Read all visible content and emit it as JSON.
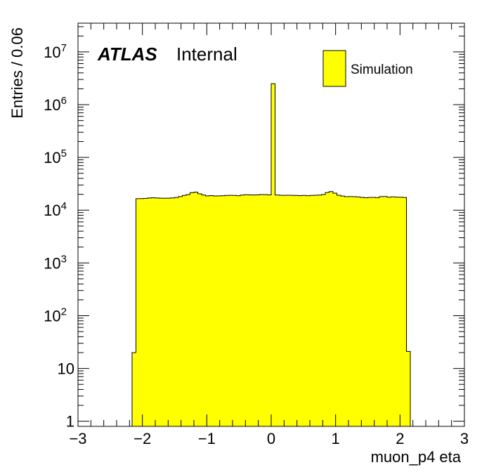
{
  "chart_data": {
    "type": "histogram",
    "xlabel": "muon_p4 eta",
    "ylabel": "Entries / 0.06",
    "xlim": [
      -3,
      3
    ],
    "ylim": [
      0.8,
      35000000
    ],
    "y_scale": "log",
    "bin_width": 0.06,
    "fill_color": "#ffff00",
    "line_color": "#000000",
    "x_ticks": [
      -3,
      -2,
      -1,
      0,
      1,
      2,
      3
    ],
    "x_tick_labels": [
      "−3",
      "−2",
      "−1",
      "0",
      "1",
      "2",
      "3"
    ],
    "y_ticks": [
      1,
      10,
      100,
      1000,
      10000,
      100000,
      1000000,
      10000000
    ],
    "y_tick_labels": [
      {
        "base": "1",
        "exp": ""
      },
      {
        "base": "10",
        "exp": ""
      },
      {
        "base": "10",
        "exp": "2"
      },
      {
        "base": "10",
        "exp": "3"
      },
      {
        "base": "10",
        "exp": "4"
      },
      {
        "base": "10",
        "exp": "5"
      },
      {
        "base": "10",
        "exp": "6"
      },
      {
        "base": "10",
        "exp": "7"
      }
    ],
    "bin_edges": [
      -2.16,
      -2.1,
      -2.04,
      -1.98,
      -1.92,
      -1.86,
      -1.8,
      -1.74,
      -1.68,
      -1.62,
      -1.56,
      -1.5,
      -1.44,
      -1.38,
      -1.32,
      -1.26,
      -1.2,
      -1.14,
      -1.08,
      -1.02,
      -0.96,
      -0.9,
      -0.84,
      -0.78,
      -0.72,
      -0.66,
      -0.6,
      -0.54,
      -0.48,
      -0.42,
      -0.36,
      -0.3,
      -0.24,
      -0.18,
      -0.12,
      -0.06,
      0,
      0.06,
      0.12,
      0.18,
      0.24,
      0.3,
      0.36,
      0.42,
      0.48,
      0.54,
      0.6,
      0.66,
      0.72,
      0.78,
      0.84,
      0.9,
      0.96,
      1.02,
      1.08,
      1.14,
      1.2,
      1.26,
      1.32,
      1.38,
      1.44,
      1.5,
      1.56,
      1.62,
      1.68,
      1.74,
      1.8,
      1.86,
      1.92,
      1.98,
      2.04,
      2.1,
      2.16
    ],
    "values": [
      20,
      16500,
      16600,
      16700,
      17000,
      17200,
      17000,
      16900,
      16800,
      16900,
      17100,
      17400,
      18100,
      19000,
      19800,
      21500,
      22000,
      20500,
      19400,
      18700,
      18900,
      18600,
      18700,
      18800,
      19000,
      19100,
      19000,
      18800,
      19300,
      19600,
      19500,
      19400,
      19500,
      19800,
      19700,
      19500,
      2500000,
      19400,
      19200,
      19100,
      19200,
      19100,
      19000,
      18900,
      19000,
      18800,
      19000,
      19200,
      19300,
      19800,
      21600,
      22500,
      21000,
      19200,
      18500,
      18000,
      18100,
      18000,
      17800,
      17500,
      17200,
      17400,
      17500,
      17300,
      18100,
      18200,
      17600,
      17900,
      17700,
      17600,
      17400,
      21
    ],
    "legend": [
      {
        "label": "Simulation"
      }
    ],
    "annotations": {
      "experiment": "ATLAS",
      "status": "Internal"
    }
  }
}
